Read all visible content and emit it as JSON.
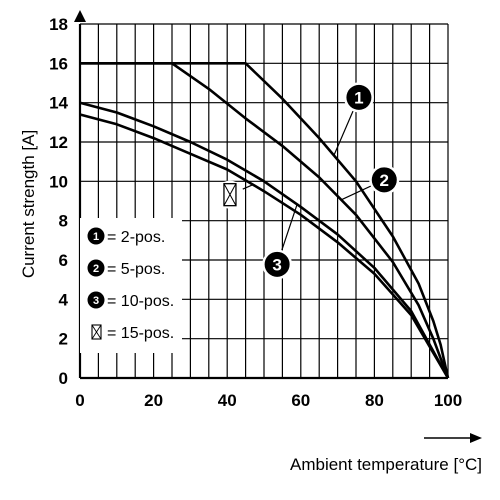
{
  "chart_data": {
    "type": "line",
    "title": "",
    "xlabel": "Ambient temperature [°C]",
    "ylabel": "Current strength [A]",
    "xlim": [
      0,
      100
    ],
    "ylim": [
      0,
      18
    ],
    "x_ticks": [
      "0",
      "20",
      "40",
      "60",
      "80",
      "100"
    ],
    "y_ticks": [
      "0",
      "2",
      "4",
      "6",
      "8",
      "10",
      "12",
      "14",
      "16",
      "18"
    ],
    "grid": true,
    "legend": {
      "placement": "left",
      "entries": [
        {
          "marker": "1",
          "label": "= 2-pos."
        },
        {
          "marker": "2",
          "label": "= 5-pos."
        },
        {
          "marker": "3",
          "label": "= 10-pos."
        },
        {
          "marker": "⊠",
          "label": "= 15-pos."
        }
      ]
    },
    "series": [
      {
        "marker": "1",
        "x": [
          0,
          45,
          55,
          65,
          75,
          85,
          92,
          96,
          98,
          100
        ],
        "y": [
          16,
          16,
          14.2,
          12.2,
          10.0,
          7.2,
          4.8,
          2.9,
          1.7,
          0
        ]
      },
      {
        "marker": "2",
        "x": [
          0,
          25,
          35,
          45,
          55,
          65,
          75,
          85,
          92,
          96,
          100
        ],
        "y": [
          16,
          16,
          14.7,
          13.2,
          11.8,
          10.2,
          8.3,
          5.9,
          3.7,
          2.0,
          0
        ]
      },
      {
        "marker": "3",
        "x": [
          0,
          10,
          20,
          30,
          40,
          50,
          60,
          70,
          80,
          90,
          100
        ],
        "y": [
          14.0,
          13.5,
          12.8,
          12.0,
          11.1,
          10.0,
          8.7,
          7.3,
          5.6,
          3.4,
          0
        ]
      },
      {
        "marker": "⊠",
        "x": [
          0,
          10,
          20,
          30,
          40,
          50,
          60,
          70,
          80,
          90,
          100
        ],
        "y": [
          13.4,
          12.9,
          12.2,
          11.4,
          10.6,
          9.5,
          8.3,
          6.9,
          5.3,
          3.2,
          0
        ]
      }
    ],
    "callouts": [
      {
        "marker": "1",
        "series": 0,
        "at_x": 69
      },
      {
        "marker": "2",
        "series": 1,
        "at_x": 71
      },
      {
        "marker": "3",
        "series": 2,
        "at_x": 59
      },
      {
        "marker": "⊠",
        "series": 3,
        "at_x": 47
      }
    ],
    "colors": {
      "line": "#000000",
      "grid": "#000000",
      "marker_fill": "#000000",
      "marker_text": "#ffffff"
    }
  }
}
